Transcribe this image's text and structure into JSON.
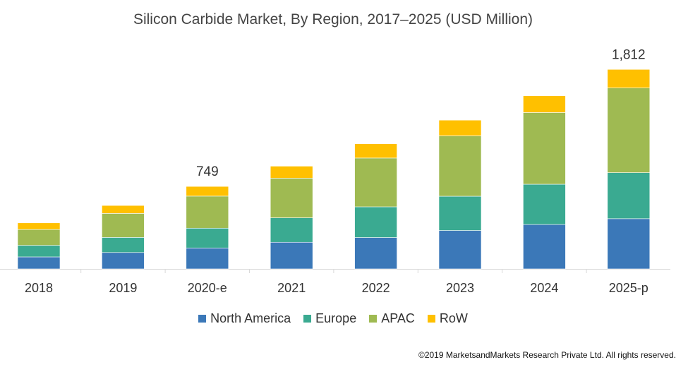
{
  "chart_data": {
    "type": "bar",
    "stacked": true,
    "title": "Silicon Carbide Market, By Region, 2017–2025  (USD Million)",
    "categories": [
      "2018",
      "2019",
      "2020-e",
      "2021",
      "2022",
      "2023",
      "2024",
      "2025-p"
    ],
    "series": [
      {
        "name": "North America",
        "color": "#3b78b8",
        "values": [
          109,
          149,
          190,
          242,
          285,
          349,
          403,
          456
        ]
      },
      {
        "name": "Europe",
        "color": "#3aaa91",
        "values": [
          105,
          137,
          180,
          222,
          279,
          311,
          366,
          418
        ]
      },
      {
        "name": "APAC",
        "color": "#9fba52",
        "values": [
          144,
          218,
          291,
          360,
          443,
          548,
          651,
          769
        ]
      },
      {
        "name": "RoW",
        "color": "#ffc000",
        "values": [
          60,
          72,
          88,
          109,
          130,
          143,
          152,
          169
        ]
      }
    ],
    "data_labels": [
      {
        "category": "2020-e",
        "text": "749"
      },
      {
        "category": "2025-p",
        "text": "1,812"
      }
    ],
    "xlabel": "",
    "ylabel": "",
    "ylim": [
      0,
      1812
    ],
    "grid": false,
    "legend": "bottom"
  },
  "copyright": "©2019 MarketsandMarkets Research Private Ltd. All rights reserved."
}
